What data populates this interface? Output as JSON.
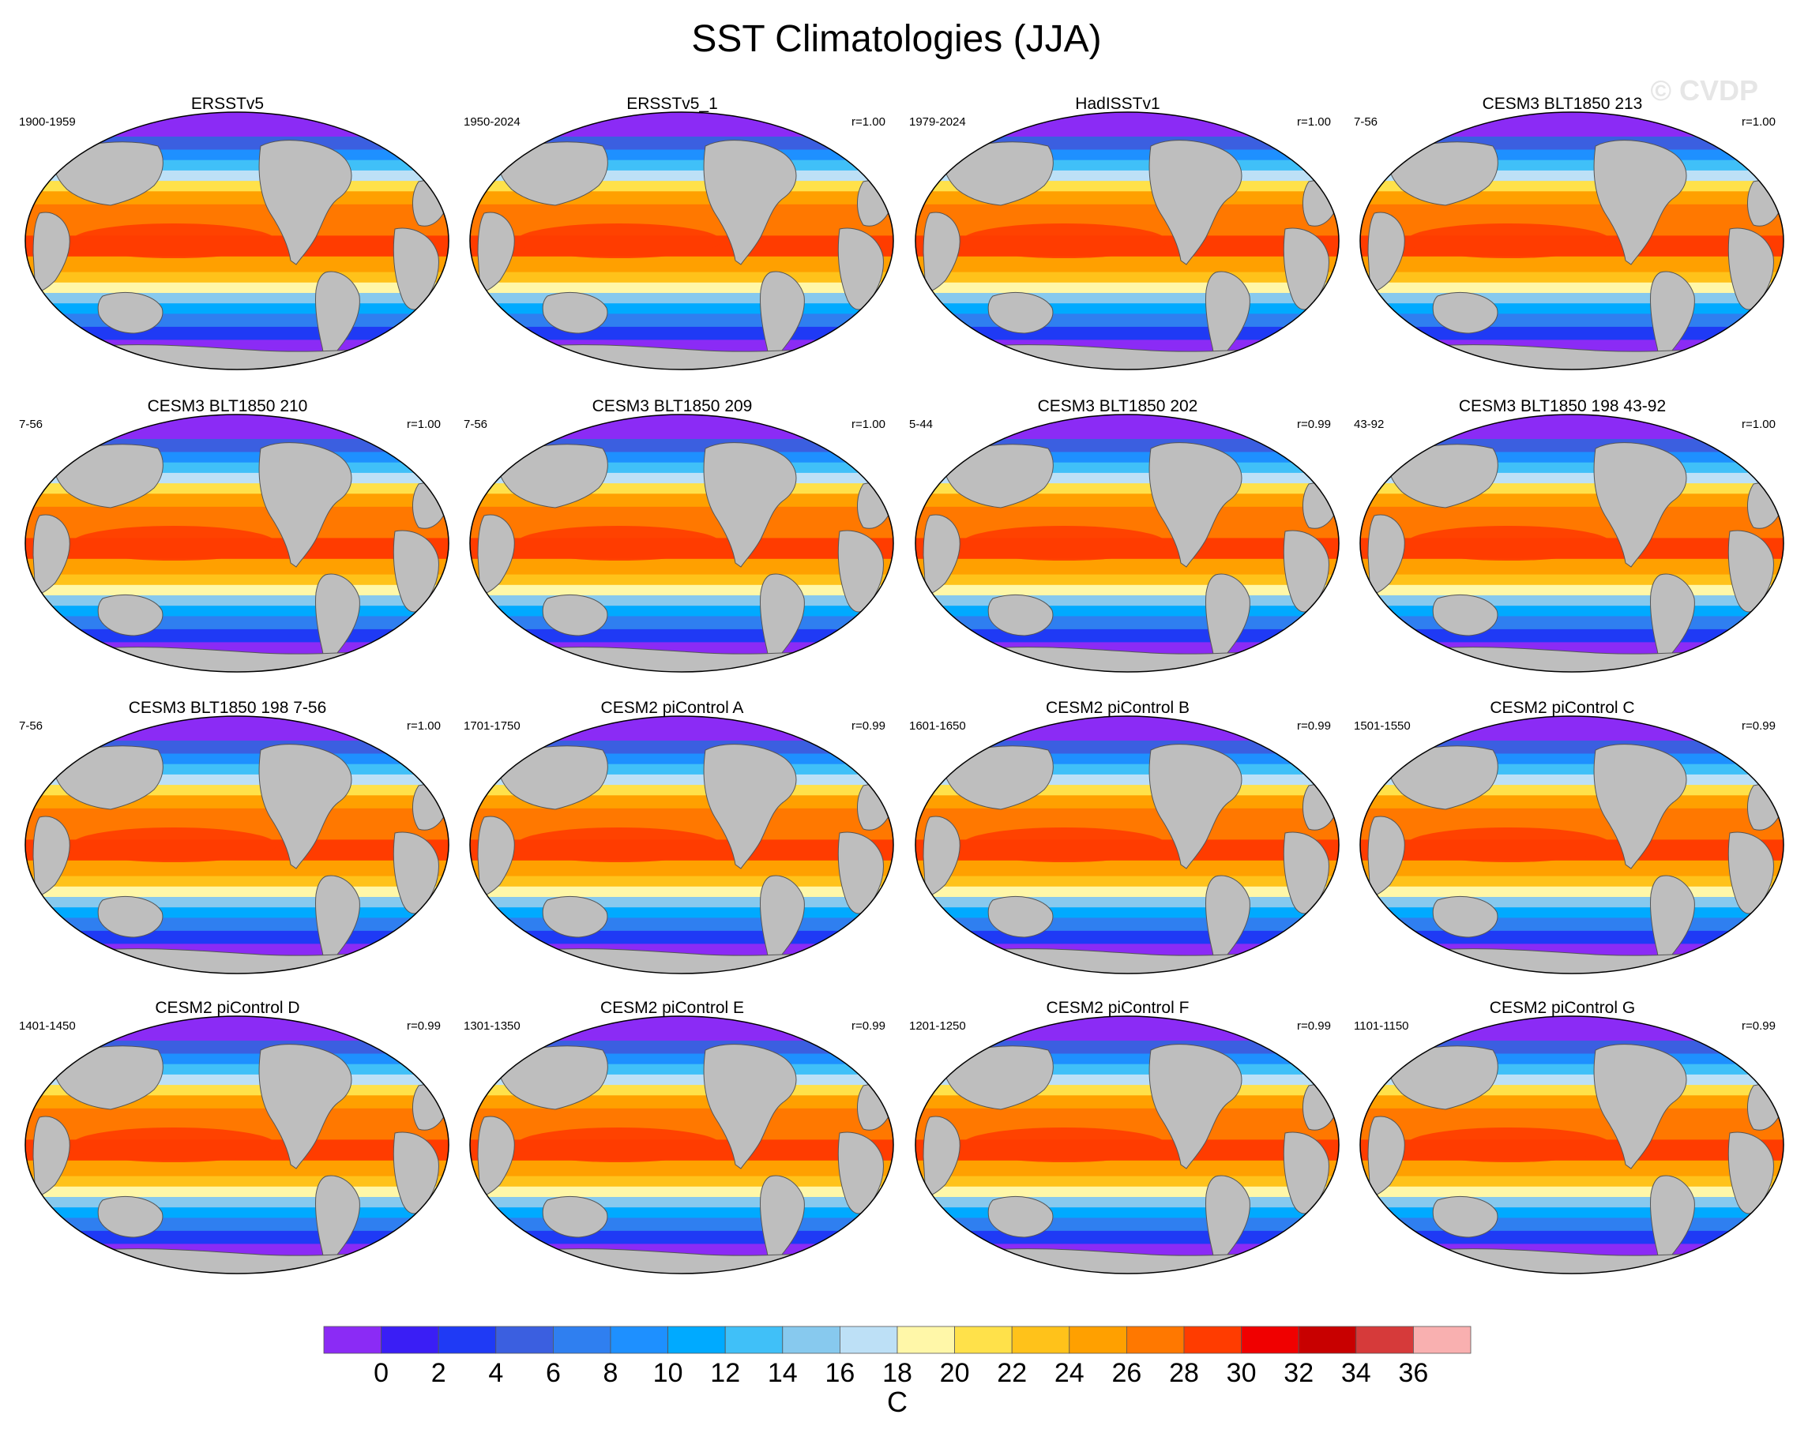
{
  "title": "SST Climatologies (JJA)",
  "watermark": "© CVDP",
  "chart_data": {
    "type": "map-panels",
    "variable": "SST",
    "season": "JJA",
    "units": "C",
    "panels": [
      {
        "title": "ERSSTv5",
        "period": "1900-1959",
        "r": ""
      },
      {
        "title": "ERSSTv5_1",
        "period": "1950-2024",
        "r": "r=1.00"
      },
      {
        "title": "HadISSTv1",
        "period": "1979-2024",
        "r": "r=1.00"
      },
      {
        "title": "CESM3 BLT1850 213",
        "period": "7-56",
        "r": "r=1.00"
      },
      {
        "title": "CESM3 BLT1850 210",
        "period": "7-56",
        "r": "r=1.00"
      },
      {
        "title": "CESM3 BLT1850 209",
        "period": "7-56",
        "r": "r=1.00"
      },
      {
        "title": "CESM3 BLT1850 202",
        "period": "5-44",
        "r": "r=0.99"
      },
      {
        "title": "CESM3 BLT1850 198 43-92",
        "period": "43-92",
        "r": "r=1.00"
      },
      {
        "title": "CESM3 BLT1850 198 7-56",
        "period": "7-56",
        "r": "r=1.00"
      },
      {
        "title": "CESM2 piControl A",
        "period": "1701-1750",
        "r": "r=0.99"
      },
      {
        "title": "CESM2 piControl B",
        "period": "1601-1650",
        "r": "r=0.99"
      },
      {
        "title": "CESM2 piControl C",
        "period": "1501-1550",
        "r": "r=0.99"
      },
      {
        "title": "CESM2 piControl D",
        "period": "1401-1450",
        "r": "r=0.99"
      },
      {
        "title": "CESM2 piControl E",
        "period": "1301-1350",
        "r": "r=0.99"
      },
      {
        "title": "CESM2 piControl F",
        "period": "1201-1250",
        "r": "r=0.99"
      },
      {
        "title": "CESM2 piControl G",
        "period": "1101-1150",
        "r": "r=0.99"
      }
    ],
    "colorbar": {
      "label": "C",
      "tick_labels": [
        "0",
        "2",
        "4",
        "6",
        "8",
        "10",
        "12",
        "14",
        "16",
        "18",
        "20",
        "22",
        "24",
        "26",
        "28",
        "30",
        "32",
        "34",
        "36"
      ],
      "colors": [
        "#8b2bf5",
        "#3a1ef5",
        "#1f3af5",
        "#3b5fe0",
        "#2f7ff0",
        "#1e90ff",
        "#00aaff",
        "#40c0f8",
        "#87c9ee",
        "#bde0f6",
        "#fff7a8",
        "#ffe14a",
        "#ffc21a",
        "#ffa000",
        "#ff7800",
        "#ff3c00",
        "#f00000",
        "#c80000",
        "#d63a3a",
        "#f9b0b0"
      ]
    },
    "land_color": "#bebebe"
  }
}
